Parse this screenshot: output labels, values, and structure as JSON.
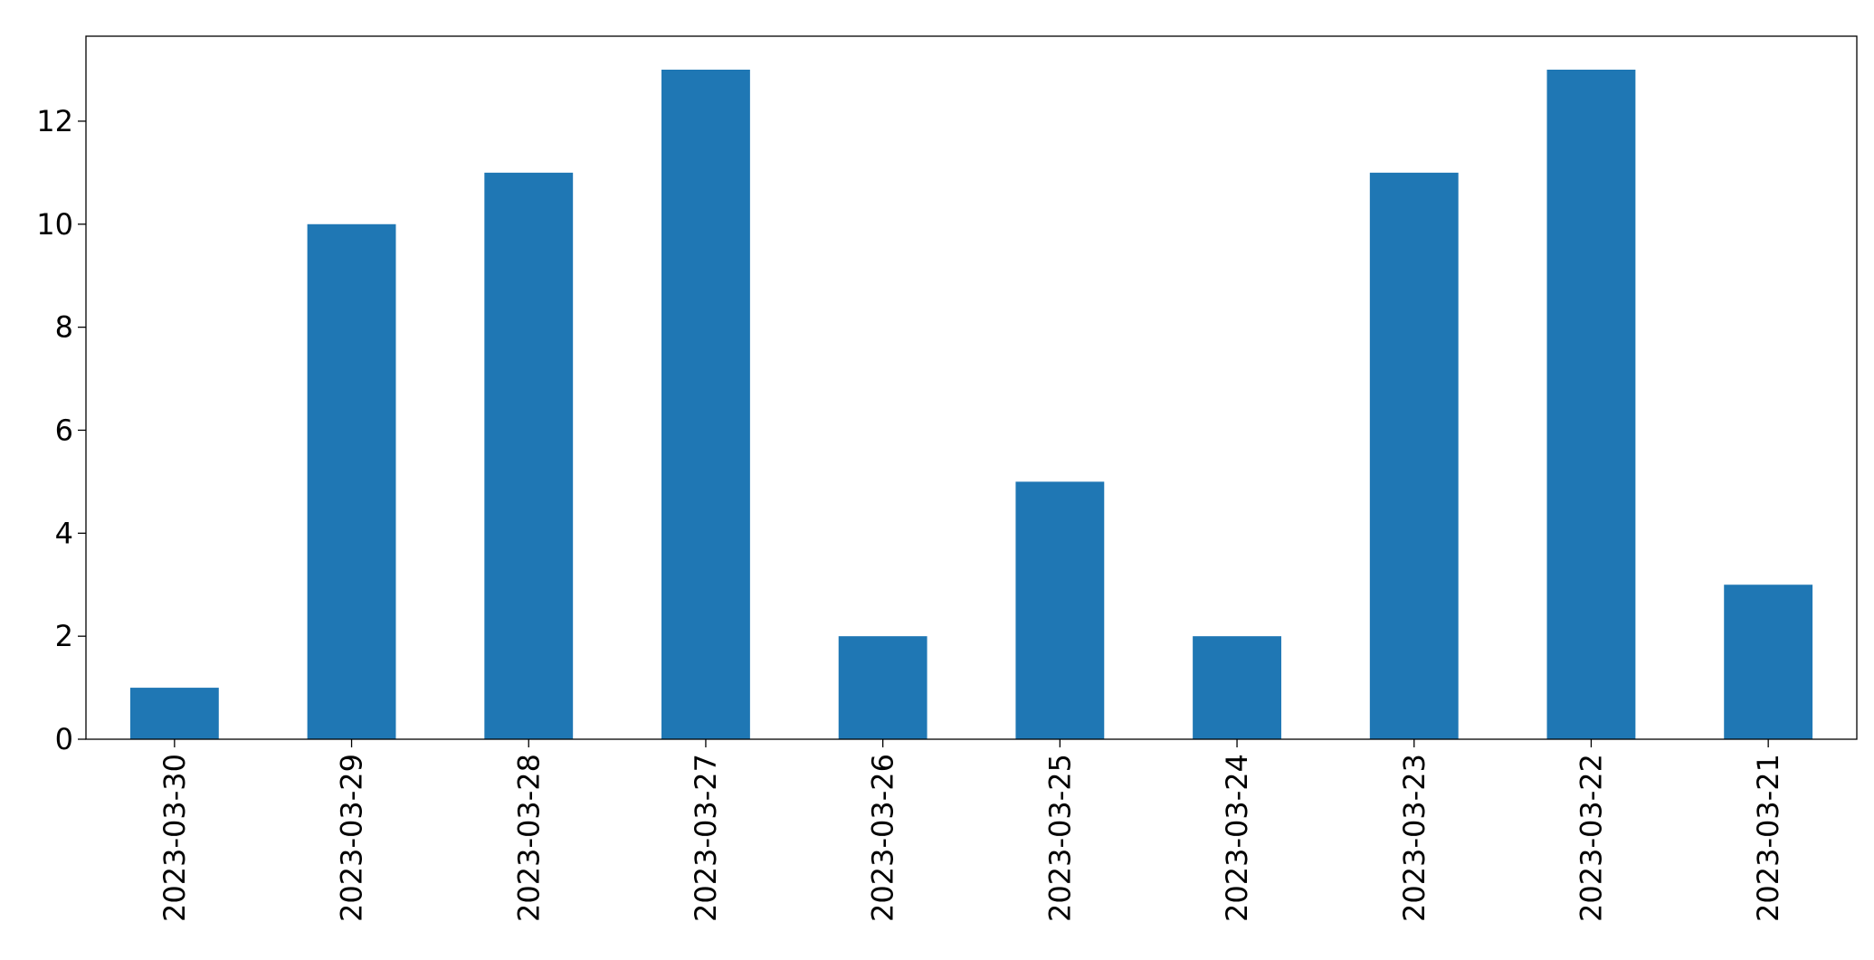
{
  "chart_data": {
    "type": "bar",
    "categories": [
      "2023-03-30",
      "2023-03-29",
      "2023-03-28",
      "2023-03-27",
      "2023-03-26",
      "2023-03-25",
      "2023-03-24",
      "2023-03-23",
      "2023-03-22",
      "2023-03-21"
    ],
    "values": [
      1,
      10,
      11,
      13,
      2,
      5,
      2,
      11,
      13,
      3
    ],
    "color": "#1f77b4",
    "ylim": [
      0,
      13.65
    ],
    "yticks": [
      0,
      2,
      4,
      6,
      8,
      10,
      12
    ],
    "grid": false
  }
}
